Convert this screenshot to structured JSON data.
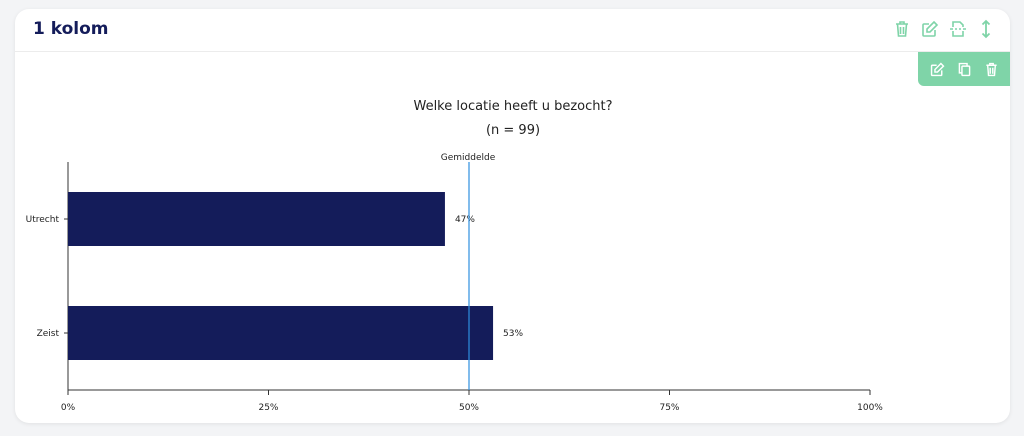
{
  "card": {
    "title": "1 kolom"
  },
  "header_icons": [
    "trash-icon",
    "edit-icon",
    "page-break-icon",
    "resize-vertical-icon"
  ],
  "toolbar_icons": [
    "edit-icon",
    "copy-icon",
    "trash-icon"
  ],
  "colors": {
    "accent": "#7fd4a8",
    "bar": "#141c5a",
    "mean_line": "#2e8fe0",
    "title": "#141c5a"
  },
  "chart_data": {
    "type": "bar",
    "orientation": "horizontal",
    "title": "Welke locatie heeft u bezocht?",
    "subtitle": "(n = 99)",
    "categories": [
      "Utrecht",
      "Zeist"
    ],
    "values": [
      47,
      53
    ],
    "value_labels": [
      "47%",
      "53%"
    ],
    "xlim": [
      0,
      100
    ],
    "x_ticks": [
      0,
      25,
      50,
      75,
      100
    ],
    "x_tick_labels": [
      "0%",
      "25%",
      "50%",
      "75%",
      "100%"
    ],
    "reference_line": {
      "label": "Gemiddelde",
      "value": 50
    },
    "grid": false,
    "legend": "none"
  }
}
